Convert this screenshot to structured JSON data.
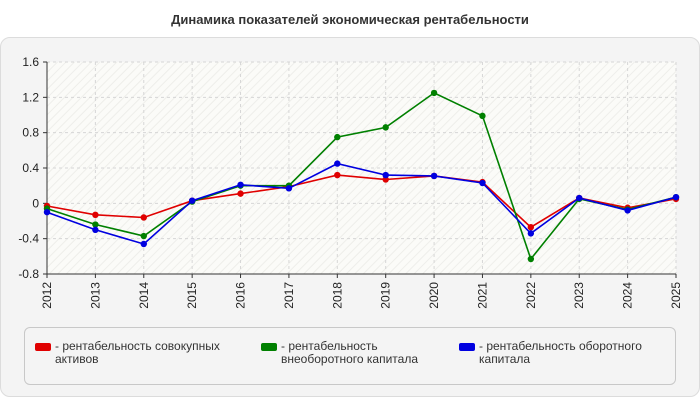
{
  "chart_data": {
    "type": "line",
    "title": "Динамика показателей экономическая рентабельности",
    "xlabel": "",
    "ylabel": "",
    "categories": [
      "2012",
      "2013",
      "2014",
      "2015",
      "2016",
      "2017",
      "2018",
      "2019",
      "2020",
      "2021",
      "2022",
      "2023",
      "2024",
      "2025"
    ],
    "ylim": [
      -0.8,
      1.6
    ],
    "yticks": [
      -0.8,
      -0.4,
      0,
      0.4,
      0.8,
      1.2,
      1.6
    ],
    "ytick_labels": [
      "-0.8",
      "-0.4",
      "0",
      "0.4",
      "0.8",
      "1.2",
      "1.6"
    ],
    "grid": true,
    "legend_position": "bottom",
    "series": [
      {
        "name": "- рентабельность совокупных активов",
        "color": "#e00000",
        "values": [
          -0.03,
          -0.13,
          -0.16,
          0.03,
          0.11,
          0.19,
          0.32,
          0.27,
          0.31,
          0.24,
          -0.27,
          0.06,
          -0.05,
          0.05
        ]
      },
      {
        "name": "- рентабельность внеоборотного капитала",
        "color": "#008000",
        "values": [
          -0.06,
          -0.24,
          -0.37,
          0.02,
          0.2,
          0.2,
          0.75,
          0.86,
          1.25,
          0.99,
          -0.63,
          0.05,
          -0.07,
          0.07
        ]
      },
      {
        "name": "- рентабельность оборотного капитала",
        "color": "#0000e0",
        "values": [
          -0.1,
          -0.3,
          -0.46,
          0.03,
          0.21,
          0.17,
          0.45,
          0.32,
          0.31,
          0.23,
          -0.34,
          0.06,
          -0.08,
          0.07
        ]
      }
    ]
  }
}
